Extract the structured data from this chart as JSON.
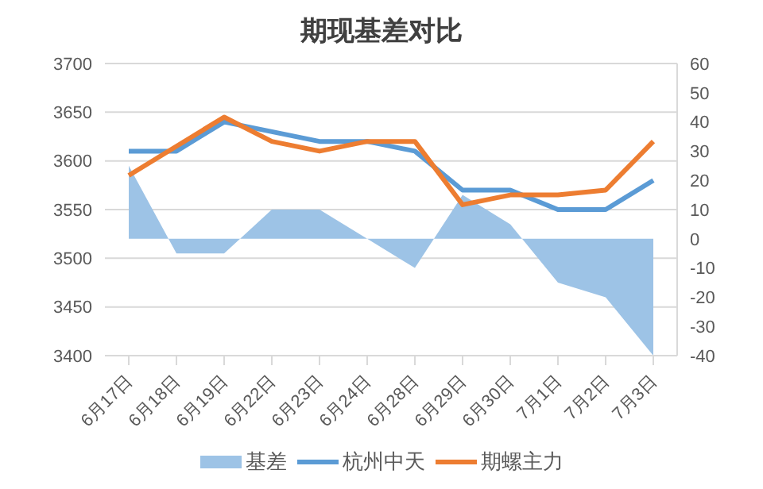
{
  "chart_data": {
    "type": "line",
    "title": "期现基差对比",
    "categories": [
      "6月17日",
      "6月18日",
      "6月19日",
      "6月22日",
      "6月23日",
      "6月24日",
      "6月28日",
      "6月29日",
      "6月30日",
      "7月1日",
      "7月2日",
      "7月3日"
    ],
    "series": [
      {
        "name": "基差",
        "type": "area",
        "axis": "y2",
        "color": "#9dc3e6",
        "values": [
          25,
          -5,
          -5,
          10,
          10,
          0,
          -10,
          15,
          5,
          -15,
          -20,
          -40
        ]
      },
      {
        "name": "杭州中天",
        "color": "#5b9bd5",
        "values": [
          3610,
          3610,
          3640,
          3630,
          3620,
          3620,
          3610,
          3570,
          3570,
          3550,
          3550,
          3580
        ]
      },
      {
        "name": "期螺主力",
        "color": "#ed7d31",
        "values": [
          3585,
          3615,
          3645,
          3620,
          3610,
          3620,
          3620,
          3555,
          3565,
          3565,
          3570,
          3620
        ]
      }
    ],
    "ylim": [
      3400,
      3700
    ],
    "yticks": [
      3400,
      3450,
      3500,
      3550,
      3600,
      3650,
      3700
    ],
    "y2lim": [
      -40,
      60
    ],
    "y2ticks": [
      -40,
      -30,
      -20,
      -10,
      0,
      10,
      20,
      30,
      40,
      50,
      60
    ],
    "grid": "y",
    "legend": "bottom",
    "marker": "none",
    "line_style": "solid"
  }
}
